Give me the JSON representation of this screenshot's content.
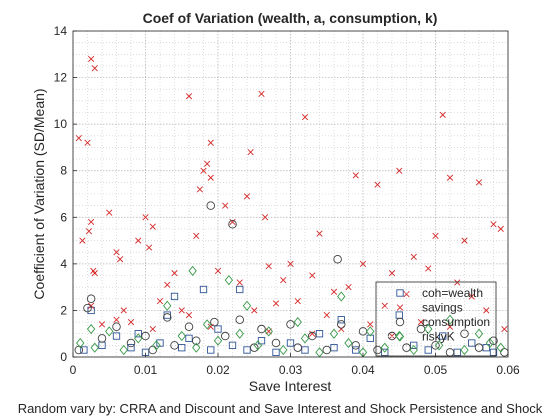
{
  "chart_data": {
    "type": "scatter",
    "title": "Coef of Variation (wealth, a, consumption, k)",
    "xlabel": "Save Interest",
    "ylabel": "Coefficient of Variation (SD/Mean)",
    "footer": "Random vary by: CRRA and Discount and Save Interest and Shock Persistence and Shock",
    "xlim": [
      0,
      0.06
    ],
    "ylim": [
      0,
      14
    ],
    "xticks": [
      0,
      0.01,
      0.02,
      0.03,
      0.04,
      0.05,
      0.06
    ],
    "xtick_labels": [
      "0",
      "0.01",
      "0.02",
      "0.03",
      "0.04",
      "0.05",
      "0.06"
    ],
    "yticks": [
      0,
      2,
      4,
      6,
      8,
      10,
      12,
      14
    ],
    "ytick_labels": [
      "0",
      "2",
      "4",
      "6",
      "8",
      "10",
      "12",
      "14"
    ],
    "grid": true,
    "legend_placement": "bottom-right",
    "series": [
      {
        "name": "coh=wealth",
        "marker": "square",
        "color": "#2f5597",
        "points": [
          [
            0.0015,
            0.3
          ],
          [
            0.0025,
            2.0
          ],
          [
            0.004,
            0.5
          ],
          [
            0.006,
            0.9
          ],
          [
            0.008,
            0.4
          ],
          [
            0.009,
            1.0
          ],
          [
            0.01,
            0.2
          ],
          [
            0.012,
            0.6
          ],
          [
            0.013,
            1.8
          ],
          [
            0.014,
            2.6
          ],
          [
            0.015,
            0.4
          ],
          [
            0.016,
            0.8
          ],
          [
            0.018,
            2.9
          ],
          [
            0.019,
            0.3
          ],
          [
            0.02,
            1.2
          ],
          [
            0.022,
            0.5
          ],
          [
            0.023,
            2.9
          ],
          [
            0.024,
            0.3
          ],
          [
            0.026,
            0.7
          ],
          [
            0.028,
            0.2
          ],
          [
            0.03,
            0.6
          ],
          [
            0.032,
            0.3
          ],
          [
            0.034,
            1.0
          ],
          [
            0.036,
            0.4
          ],
          [
            0.037,
            1.6
          ],
          [
            0.039,
            0.3
          ],
          [
            0.041,
            0.8
          ],
          [
            0.043,
            0.2
          ],
          [
            0.045,
            1.8
          ],
          [
            0.047,
            0.5
          ],
          [
            0.049,
            0.3
          ],
          [
            0.051,
            0.9
          ],
          [
            0.053,
            0.2
          ],
          [
            0.055,
            0.6
          ],
          [
            0.057,
            0.4
          ],
          [
            0.058,
            0.2
          ]
        ]
      },
      {
        "name": "savings",
        "marker": "x",
        "color": "#d62728",
        "points": [
          [
            0.0008,
            9.4
          ],
          [
            0.0013,
            5.0
          ],
          [
            0.002,
            9.2
          ],
          [
            0.0025,
            12.8
          ],
          [
            0.003,
            12.4
          ],
          [
            0.0025,
            5.8
          ],
          [
            0.0028,
            3.7
          ],
          [
            0.003,
            3.6
          ],
          [
            0.0022,
            5.4
          ],
          [
            0.0025,
            2.2
          ],
          [
            0.004,
            1.4
          ],
          [
            0.005,
            6.2
          ],
          [
            0.006,
            4.5
          ],
          [
            0.0065,
            4.2
          ],
          [
            0.007,
            2.0
          ],
          [
            0.008,
            1.5
          ],
          [
            0.009,
            5.0
          ],
          [
            0.01,
            6.0
          ],
          [
            0.0105,
            4.7
          ],
          [
            0.011,
            5.6
          ],
          [
            0.012,
            2.4
          ],
          [
            0.013,
            3.1
          ],
          [
            0.014,
            3.6
          ],
          [
            0.015,
            2.0
          ],
          [
            0.016,
            11.2
          ],
          [
            0.017,
            5.2
          ],
          [
            0.0175,
            7.2
          ],
          [
            0.018,
            8.0
          ],
          [
            0.0185,
            8.3
          ],
          [
            0.019,
            9.2
          ],
          [
            0.019,
            7.7
          ],
          [
            0.02,
            3.7
          ],
          [
            0.021,
            6.5
          ],
          [
            0.022,
            5.8
          ],
          [
            0.023,
            3.2
          ],
          [
            0.024,
            6.9
          ],
          [
            0.0245,
            8.8
          ],
          [
            0.025,
            2.0
          ],
          [
            0.026,
            11.3
          ],
          [
            0.0265,
            6.0
          ],
          [
            0.027,
            3.9
          ],
          [
            0.028,
            2.3
          ],
          [
            0.029,
            3.3
          ],
          [
            0.03,
            4.0
          ],
          [
            0.031,
            2.4
          ],
          [
            0.032,
            10.3
          ],
          [
            0.033,
            3.5
          ],
          [
            0.034,
            5.3
          ],
          [
            0.035,
            1.8
          ],
          [
            0.036,
            2.8
          ],
          [
            0.037,
            1.2
          ],
          [
            0.038,
            3.0
          ],
          [
            0.039,
            7.8
          ],
          [
            0.04,
            4.0
          ],
          [
            0.041,
            1.4
          ],
          [
            0.042,
            7.4
          ],
          [
            0.043,
            2.2
          ],
          [
            0.044,
            3.6
          ],
          [
            0.045,
            8.0
          ],
          [
            0.046,
            2.7
          ],
          [
            0.047,
            4.3
          ],
          [
            0.048,
            1.5
          ],
          [
            0.049,
            3.8
          ],
          [
            0.05,
            5.2
          ],
          [
            0.051,
            10.4
          ],
          [
            0.052,
            7.7
          ],
          [
            0.053,
            3.2
          ],
          [
            0.054,
            5.0
          ],
          [
            0.055,
            2.6
          ],
          [
            0.056,
            7.5
          ],
          [
            0.057,
            2.0
          ],
          [
            0.058,
            5.7
          ],
          [
            0.059,
            5.5
          ],
          [
            0.0595,
            1.2
          ],
          [
            0.033,
            1.0
          ],
          [
            0.027,
            1.1
          ],
          [
            0.019,
            1.3
          ],
          [
            0.011,
            1.2
          ],
          [
            0.044,
            0.9
          ],
          [
            0.052,
            1.3
          ],
          [
            0.006,
            1.6
          ],
          [
            0.016,
            1.8
          ]
        ]
      },
      {
        "name": "consumption",
        "marker": "circle",
        "color": "#404040",
        "points": [
          [
            0.0008,
            0.3
          ],
          [
            0.002,
            2.1
          ],
          [
            0.0025,
            2.5
          ],
          [
            0.004,
            0.8
          ],
          [
            0.006,
            1.3
          ],
          [
            0.008,
            0.6
          ],
          [
            0.01,
            0.9
          ],
          [
            0.011,
            0.3
          ],
          [
            0.013,
            1.7
          ],
          [
            0.014,
            0.5
          ],
          [
            0.016,
            1.3
          ],
          [
            0.017,
            0.7
          ],
          [
            0.019,
            6.5
          ],
          [
            0.0195,
            1.5
          ],
          [
            0.021,
            0.9
          ],
          [
            0.022,
            5.7
          ],
          [
            0.023,
            1.6
          ],
          [
            0.025,
            0.4
          ],
          [
            0.026,
            1.2
          ],
          [
            0.028,
            0.6
          ],
          [
            0.03,
            1.4
          ],
          [
            0.031,
            0.4
          ],
          [
            0.033,
            0.9
          ],
          [
            0.035,
            0.3
          ],
          [
            0.0365,
            4.2
          ],
          [
            0.037,
            1.4
          ],
          [
            0.039,
            0.5
          ],
          [
            0.04,
            1.1
          ],
          [
            0.042,
            0.3
          ],
          [
            0.044,
            0.9
          ],
          [
            0.046,
            0.4
          ],
          [
            0.048,
            1.2
          ],
          [
            0.05,
            0.5
          ],
          [
            0.052,
            0.2
          ],
          [
            0.054,
            1.0
          ],
          [
            0.056,
            0.4
          ],
          [
            0.058,
            0.7
          ],
          [
            0.0595,
            0.2
          ]
        ]
      },
      {
        "name": "riskyK",
        "marker": "diamond",
        "color": "#3a9a4a",
        "points": [
          [
            0.001,
            0.6
          ],
          [
            0.0025,
            1.2
          ],
          [
            0.003,
            0.4
          ],
          [
            0.005,
            1.1
          ],
          [
            0.007,
            0.3
          ],
          [
            0.009,
            0.8
          ],
          [
            0.0115,
            0.5
          ],
          [
            0.013,
            2.2
          ],
          [
            0.015,
            0.9
          ],
          [
            0.0165,
            3.7
          ],
          [
            0.017,
            0.4
          ],
          [
            0.0185,
            1.4
          ],
          [
            0.02,
            0.7
          ],
          [
            0.0215,
            3.3
          ],
          [
            0.023,
            1.0
          ],
          [
            0.024,
            2.2
          ],
          [
            0.0255,
            0.5
          ],
          [
            0.027,
            1.1
          ],
          [
            0.029,
            0.3
          ],
          [
            0.031,
            1.5
          ],
          [
            0.032,
            0.8
          ],
          [
            0.034,
            0.2
          ],
          [
            0.036,
            1.0
          ],
          [
            0.037,
            2.6
          ],
          [
            0.038,
            0.6
          ],
          [
            0.04,
            0.2
          ],
          [
            0.041,
            1.1
          ],
          [
            0.043,
            0.4
          ],
          [
            0.045,
            0.9
          ],
          [
            0.047,
            0.3
          ],
          [
            0.049,
            1.2
          ],
          [
            0.0505,
            0.5
          ],
          [
            0.052,
            1.6
          ],
          [
            0.054,
            0.3
          ],
          [
            0.056,
            1.0
          ],
          [
            0.0575,
            0.6
          ],
          [
            0.059,
            0.4
          ]
        ]
      }
    ]
  }
}
